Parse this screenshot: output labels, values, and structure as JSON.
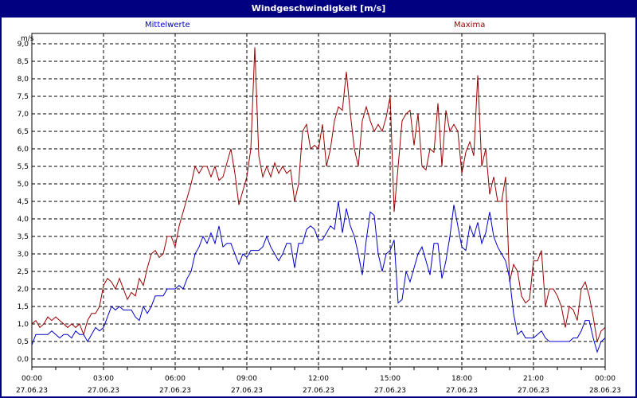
{
  "window": {
    "title": "Windgeschwindigkeit [m/s]"
  },
  "legend": {
    "mean_label": "Mittelwerte",
    "max_label": "Maxima",
    "mean_color": "#0000cc",
    "max_color": "#990000"
  },
  "chart_data": {
    "type": "line",
    "title": "Windgeschwindigkeit [m/s]",
    "ylabel": "m/s",
    "xlabel": "",
    "ylim": [
      0,
      9
    ],
    "yticks": [
      "0,0",
      "0,5",
      "1,0",
      "1,5",
      "2,0",
      "2,5",
      "3,0",
      "3,5",
      "4,0",
      "4,5",
      "5,0",
      "5,5",
      "6,0",
      "6,5",
      "7,0",
      "7,5",
      "8,0",
      "8,5",
      "9,0"
    ],
    "xticks": [
      {
        "time": "00:00",
        "date": "27.06.23"
      },
      {
        "time": "03:00",
        "date": "27.06.23"
      },
      {
        "time": "06:00",
        "date": "27.06.23"
      },
      {
        "time": "09:00",
        "date": "27.06.23"
      },
      {
        "time": "12:00",
        "date": "27.06.23"
      },
      {
        "time": "15:00",
        "date": "27.06.23"
      },
      {
        "time": "18:00",
        "date": "27.06.23"
      },
      {
        "time": "21:00",
        "date": "27.06.23"
      },
      {
        "time": "00:00",
        "date": "28.06.23"
      }
    ],
    "x_interval_minutes": 10,
    "grid": true,
    "legend_position": "top",
    "series": [
      {
        "name": "Mittelwerte",
        "color": "#0000cc",
        "values": [
          0.4,
          0.7,
          0.7,
          0.7,
          0.7,
          0.8,
          0.7,
          0.6,
          0.7,
          0.7,
          0.6,
          0.8,
          0.7,
          0.7,
          0.5,
          0.7,
          0.9,
          0.8,
          0.9,
          1.2,
          1.5,
          1.4,
          1.5,
          1.4,
          1.4,
          1.4,
          1.2,
          1.1,
          1.5,
          1.3,
          1.5,
          1.8,
          1.8,
          1.8,
          2.0,
          2.0,
          2.0,
          2.1,
          2.0,
          2.3,
          2.5,
          3.0,
          3.2,
          3.5,
          3.3,
          3.6,
          3.3,
          3.8,
          3.2,
          3.3,
          3.3,
          3.0,
          2.7,
          3.0,
          2.9,
          3.1,
          3.1,
          3.1,
          3.2,
          3.5,
          3.2,
          3.0,
          2.8,
          3.0,
          3.3,
          3.3,
          2.6,
          3.3,
          3.3,
          3.7,
          3.8,
          3.7,
          3.4,
          3.4,
          3.6,
          3.8,
          3.7,
          4.5,
          3.6,
          4.3,
          3.8,
          3.5,
          3.0,
          2.4,
          3.4,
          4.2,
          4.1,
          3.0,
          2.5,
          3.0,
          3.1,
          3.4,
          1.6,
          1.7,
          2.5,
          2.2,
          2.6,
          3.0,
          3.2,
          2.8,
          2.4,
          3.3,
          3.3,
          2.3,
          2.8,
          3.5,
          4.4,
          3.8,
          3.2,
          3.1,
          3.8,
          3.5,
          3.9,
          3.3,
          3.6,
          4.2,
          3.5,
          3.2,
          3.0,
          2.8,
          2.3,
          1.3,
          0.7,
          0.8,
          0.6,
          0.6,
          0.6,
          0.7,
          0.8,
          0.6,
          0.5,
          0.5,
          0.5,
          0.5,
          0.5,
          0.5,
          0.6,
          0.6,
          0.8,
          1.1,
          1.1,
          0.6,
          0.2,
          0.5,
          0.6
        ]
      },
      {
        "name": "Maxima",
        "color": "#990000",
        "values": [
          1.0,
          1.1,
          0.9,
          1.0,
          1.2,
          1.1,
          1.2,
          1.1,
          1.0,
          0.9,
          1.0,
          0.9,
          1.0,
          0.7,
          1.1,
          1.3,
          1.3,
          1.5,
          2.1,
          2.3,
          2.2,
          2.0,
          2.3,
          2.0,
          1.7,
          1.9,
          1.8,
          2.3,
          2.1,
          2.6,
          3.0,
          3.1,
          2.9,
          3.0,
          3.5,
          3.5,
          3.2,
          3.8,
          4.2,
          4.6,
          5.0,
          5.5,
          5.3,
          5.5,
          5.5,
          5.2,
          5.5,
          5.1,
          5.2,
          5.6,
          6.0,
          5.3,
          4.4,
          4.8,
          5.2,
          6.0,
          8.9,
          5.8,
          5.2,
          5.5,
          5.2,
          5.6,
          5.3,
          5.5,
          5.3,
          5.4,
          4.5,
          5.0,
          6.5,
          6.7,
          6.0,
          6.1,
          6.0,
          6.7,
          5.5,
          6.0,
          6.8,
          7.2,
          7.1,
          8.2,
          7.0,
          6.0,
          5.5,
          6.8,
          7.2,
          6.8,
          6.5,
          6.7,
          6.5,
          6.9,
          7.5,
          4.2,
          5.5,
          6.8,
          7.0,
          7.1,
          6.1,
          7.0,
          5.5,
          5.4,
          6.0,
          5.9,
          7.3,
          5.5,
          7.1,
          6.5,
          6.7,
          6.5,
          5.3,
          5.9,
          6.2,
          5.8,
          8.1,
          5.5,
          6.0,
          4.7,
          5.2,
          4.5,
          4.5,
          5.2,
          2.2,
          2.7,
          2.5,
          1.8,
          1.6,
          1.7,
          2.8,
          2.8,
          3.1,
          1.5,
          2.0,
          2.0,
          1.8,
          1.5,
          0.9,
          1.5,
          1.4,
          1.1,
          2.0,
          2.2,
          1.8,
          1.2,
          0.5,
          0.8,
          0.9
        ]
      }
    ]
  }
}
